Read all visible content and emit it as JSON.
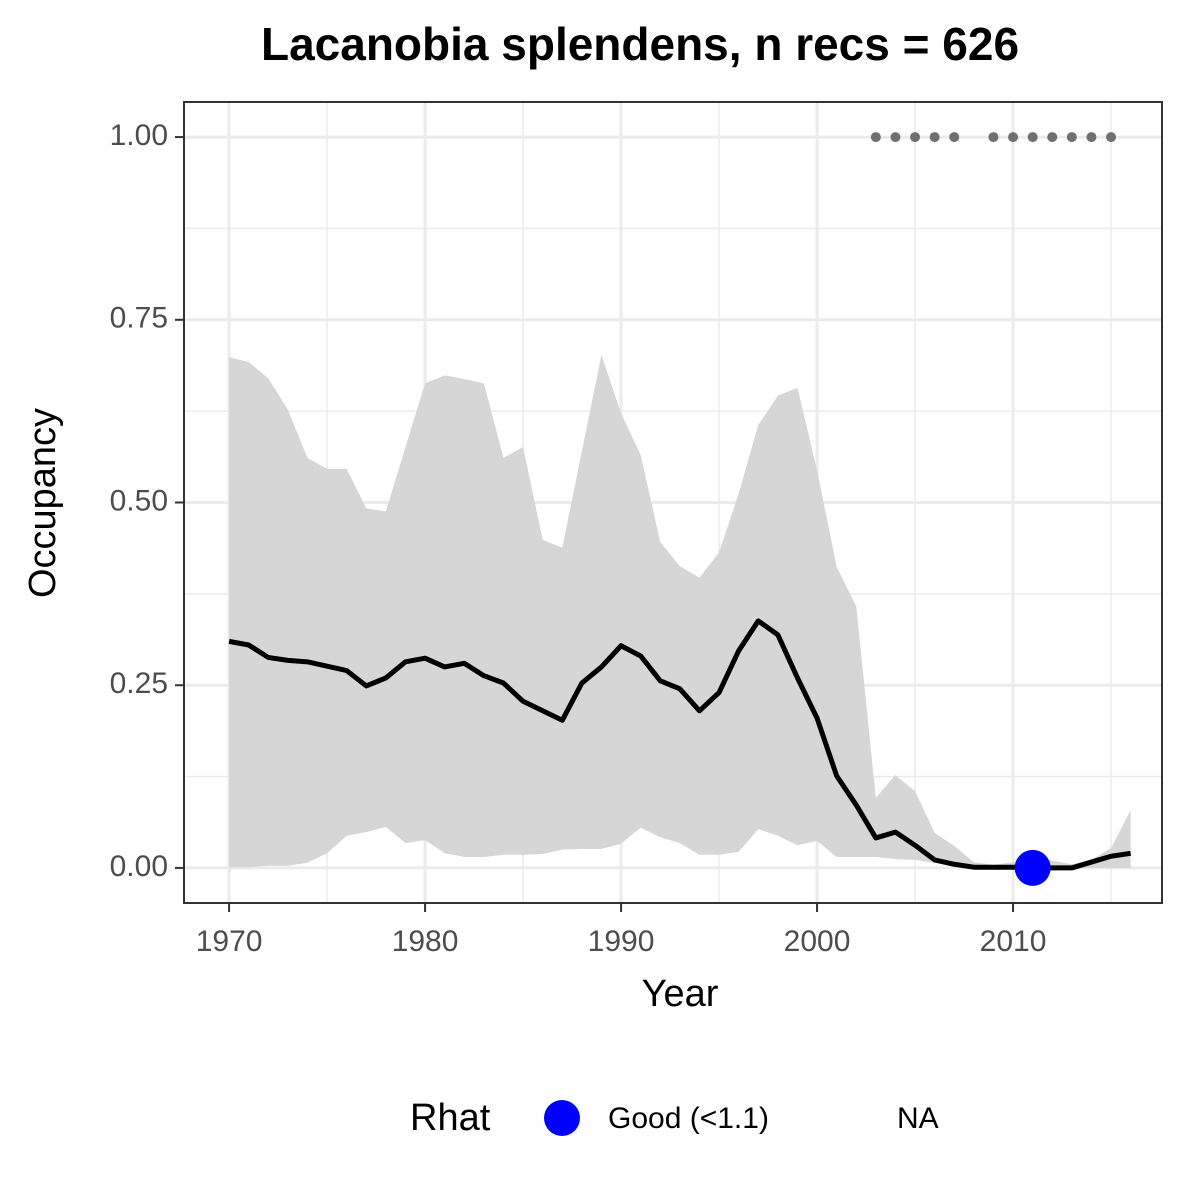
{
  "chart_data": {
    "type": "line",
    "title": "Lacanobia splendens, n recs = 626",
    "xlabel": "Year",
    "ylabel": "Occupancy",
    "x": [
      1970,
      1971,
      1972,
      1973,
      1974,
      1975,
      1976,
      1977,
      1978,
      1979,
      1980,
      1981,
      1982,
      1983,
      1984,
      1985,
      1986,
      1987,
      1988,
      1989,
      1990,
      1991,
      1992,
      1993,
      1994,
      1995,
      1996,
      1997,
      1998,
      1999,
      2000,
      2001,
      2002,
      2003,
      2004,
      2005,
      2006,
      2007,
      2008,
      2009,
      2010,
      2011,
      2012,
      2013,
      2014,
      2015,
      2016
    ],
    "values": [
      0.31,
      0.305,
      0.288,
      0.284,
      0.282,
      0.276,
      0.27,
      0.249,
      0.26,
      0.282,
      0.287,
      0.275,
      0.28,
      0.263,
      0.253,
      0.228,
      0.215,
      0.202,
      0.253,
      0.275,
      0.304,
      0.29,
      0.256,
      0.245,
      0.215,
      0.24,
      0.297,
      0.338,
      0.319,
      0.26,
      0.205,
      0.126,
      0.086,
      0.041,
      0.049,
      0.031,
      0.011,
      0.005,
      0.001,
      0.001,
      0.001,
      0,
      0,
      0,
      0.008,
      0.016,
      0.02
    ],
    "color": "#000000",
    "upper": [
      0.699,
      0.692,
      0.67,
      0.627,
      0.561,
      0.546,
      0.546,
      0.492,
      0.488,
      0.576,
      0.663,
      0.674,
      0.669,
      0.663,
      0.561,
      0.576,
      0.449,
      0.438,
      0.57,
      0.702,
      0.622,
      0.565,
      0.446,
      0.413,
      0.397,
      0.432,
      0.512,
      0.606,
      0.646,
      0.657,
      0.544,
      0.412,
      0.358,
      0.096,
      0.127,
      0.105,
      0.048,
      0.03,
      0.008,
      0.004,
      0.008,
      0.014,
      0.01,
      0.005,
      0.011,
      0.027,
      0.079
    ],
    "lower": [
      0.001,
      0.001,
      0.003,
      0.003,
      0.007,
      0.02,
      0.044,
      0.049,
      0.056,
      0.034,
      0.038,
      0.02,
      0.015,
      0.015,
      0.018,
      0.018,
      0.019,
      0.025,
      0.026,
      0.026,
      0.033,
      0.055,
      0.042,
      0.034,
      0.018,
      0.018,
      0.022,
      0.053,
      0.044,
      0.031,
      0.037,
      0.015,
      0.015,
      0.015,
      0.012,
      0.011,
      0.007,
      0.003,
      0,
      0,
      0,
      0,
      0,
      0,
      0,
      0,
      0
    ],
    "band_color": "#d6d6d6",
    "record_points": {
      "x": [
        2003,
        2004,
        2005,
        2006,
        2007,
        2009,
        2010,
        2011,
        2012,
        2013,
        2014,
        2015
      ],
      "values": [
        1,
        1,
        1,
        1,
        1,
        1,
        1,
        1,
        1,
        1,
        1,
        1
      ],
      "color": "#707070"
    },
    "rhat_points": {
      "x": [
        2011
      ],
      "values": [
        0
      ],
      "color": "#0000ff"
    },
    "legend": {
      "title": "Rhat",
      "position": "bottom",
      "entries": [
        {
          "label": "Good (<1.1)",
          "color": "#0000ff"
        },
        {
          "label": "NA"
        }
      ]
    },
    "xlim": [
      1967.7,
      2017.6
    ],
    "ylim": [
      -0.048,
      1.048
    ],
    "xticks": [
      1970,
      1980,
      1990,
      2000,
      2010
    ],
    "yticks": [
      {
        "value": 0,
        "label": "0.00"
      },
      {
        "value": 0.25,
        "label": "0.25"
      },
      {
        "value": 0.5,
        "label": "0.50"
      },
      {
        "value": 0.75,
        "label": "0.75"
      },
      {
        "value": 1,
        "label": "1.00"
      }
    ],
    "xminor": [
      1975,
      1985,
      1995,
      2005,
      2015
    ],
    "yminor": [
      0.125,
      0.375,
      0.625,
      0.875
    ],
    "grid": true
  }
}
